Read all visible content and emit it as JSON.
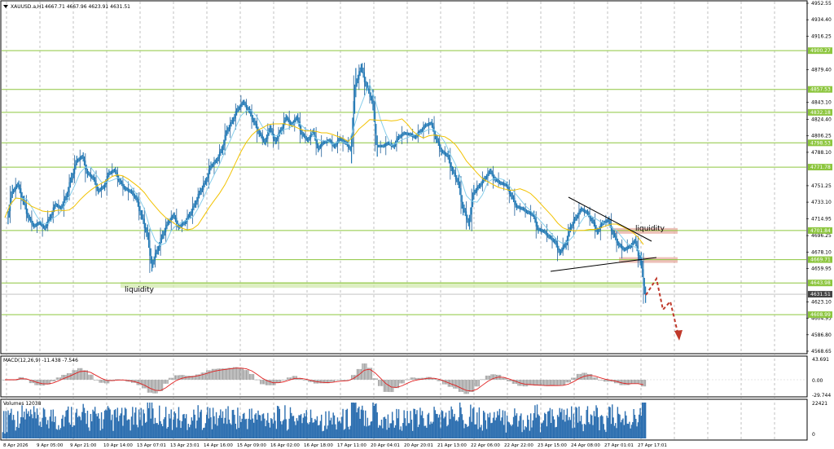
{
  "chart_data": {
    "type": "line",
    "symbol": "XAUUSD.a,H1",
    "header_values": "4667.71 4667.96 4623.91 4631.51",
    "price_axis": {
      "min": 4568.65,
      "max": 4952.55,
      "ticks": [
        "4952.55",
        "4934.40",
        "4916.25",
        "4879.40",
        "4843.10",
        "4824.40",
        "4806.25",
        "4788.10",
        "4751.25",
        "4733.10",
        "4714.95",
        "4696.25",
        "4678.10",
        "4659.95",
        "4623.10",
        "4604.95",
        "4586.80",
        "4568.65"
      ]
    },
    "price_levels": [
      {
        "label": "4900.27",
        "value": 4900.27
      },
      {
        "label": "4857.53",
        "value": 4857.53
      },
      {
        "label": "4832.18",
        "value": 4832.18
      },
      {
        "label": "4798.53",
        "value": 4798.53
      },
      {
        "label": "4771.78",
        "value": 4771.78
      },
      {
        "label": "4701.84",
        "value": 4701.84
      },
      {
        "label": "4669.71",
        "value": 4669.71
      },
      {
        "label": "4643.98",
        "value": 4643.98
      },
      {
        "label": "4608.99",
        "value": 4608.99
      }
    ],
    "current_price": {
      "label": "4631.51",
      "value": 4631.51
    },
    "date_ticks": [
      "8 Apr 2026",
      "9 Apr 05:00",
      "9 Apr 21:00",
      "10 Apr 14:00",
      "13 Apr 07:01",
      "13 Apr 23:01",
      "14 Apr 16:00",
      "15 Apr 09:00",
      "16 Apr 02:00",
      "16 Apr 18:00",
      "17 Apr 11:00",
      "20 Apr 04:01",
      "20 Apr 20:01",
      "21 Apr 13:00",
      "22 Apr 06:00",
      "22 Apr 22:00",
      "23 Apr 15:00",
      "24 Apr 08:00",
      "27 Apr 01:01",
      "27 Apr 17:01"
    ],
    "close_series": [
      4716,
      4745,
      4752,
      4735,
      4716,
      4707,
      4710,
      4705,
      4716,
      4730,
      4727,
      4739,
      4760,
      4779,
      4783,
      4765,
      4760,
      4746,
      4750,
      4765,
      4768,
      4756,
      4748,
      4745,
      4738,
      4719,
      4700,
      4665,
      4680,
      4697,
      4711,
      4718,
      4706,
      4710,
      4719,
      4731,
      4745,
      4756,
      4773,
      4779,
      4791,
      4812,
      4823,
      4836,
      4843,
      4835,
      4822,
      4809,
      4800,
      4814,
      4801,
      4812,
      4826,
      4819,
      4826,
      4808,
      4802,
      4810,
      4793,
      4799,
      4801,
      4795,
      4803,
      4799,
      4792,
      4865,
      4881,
      4861,
      4846,
      4795,
      4795,
      4798,
      4795,
      4805,
      4809,
      4808,
      4805,
      4811,
      4818,
      4820,
      4803,
      4789,
      4785,
      4768,
      4756,
      4726,
      4711,
      4744,
      4751,
      4759,
      4767,
      4758,
      4754,
      4752,
      4740,
      4728,
      4726,
      4722,
      4719,
      4703,
      4701,
      4695,
      4690,
      4678,
      4686,
      4705,
      4716,
      4725,
      4722,
      4713,
      4701,
      4710,
      4713,
      4698,
      4686,
      4681,
      4684,
      4690,
      4669,
      4631
    ],
    "liquidity_labels": [
      "liquidity",
      "liquidity"
    ],
    "macd": {
      "label": "MACD(12,26,9) -11.438 -7.546",
      "ticks": [
        "43.691",
        "0.00",
        "-29.744"
      ]
    },
    "volumes": {
      "label": "Volumes 12038",
      "ticks": [
        "22421",
        "0"
      ]
    },
    "colors": {
      "level_line": "#8dc63f",
      "level_tag": "#8dc63f",
      "candle_up": "#1f77b4",
      "candle_down": "#1f77b4",
      "ma_fast": "#87ceeb",
      "ma_slow": "#f2c200",
      "forecast": "#c0392b",
      "zone": "#e9b0a6",
      "liquidity_zone": "#cfe8a8",
      "macd_signal": "#e02020"
    }
  }
}
